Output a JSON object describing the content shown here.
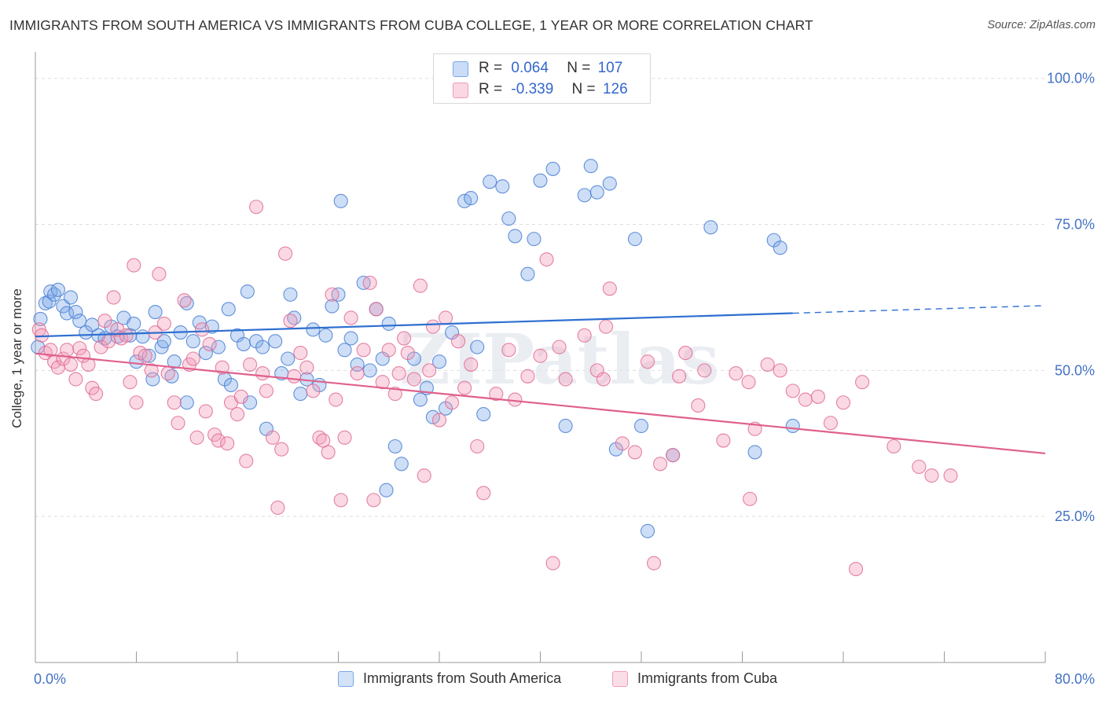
{
  "title": "IMMIGRANTS FROM SOUTH AMERICA VS IMMIGRANTS FROM CUBA COLLEGE, 1 YEAR OR MORE CORRELATION CHART",
  "source": "Source: ZipAtlas.com",
  "watermark": "ZIPatlas",
  "legend": {
    "rows": [
      {
        "r_label": "R =",
        "r_value": "0.064",
        "n_label": "N =",
        "n_value": "107",
        "color": "#7ba7e8"
      },
      {
        "r_label": "R =",
        "r_value": "-0.339",
        "n_label": "N =",
        "n_value": "126",
        "color": "#f19cb8"
      }
    ]
  },
  "chart_data": {
    "type": "scatter",
    "title": "IMMIGRANTS FROM SOUTH AMERICA VS IMMIGRANTS FROM CUBA COLLEGE, 1 YEAR OR MORE CORRELATION CHART",
    "xlabel": "",
    "ylabel": "College, 1 year or more",
    "xlim": [
      0,
      80
    ],
    "ylim": [
      0,
      104
    ],
    "x_tick_labels": [
      "0.0%",
      "80.0%"
    ],
    "y_tick_labels": [
      "100.0%",
      "75.0%",
      "50.0%",
      "25.0%"
    ],
    "y_ticks": [
      100,
      75,
      50,
      25
    ],
    "grid": true,
    "legend_position": "top-center",
    "series": [
      {
        "name": "Immigrants from South America",
        "color": "#7ba7e8",
        "stroke": "#4a7fd4",
        "trend": {
          "x0": 0,
          "y0": 55.8,
          "x1": 60,
          "y1": 59.8,
          "dashed_to_x": 80,
          "dashed_to_y": 61.1,
          "color": "#2e6fd0"
        },
        "points": [
          [
            0.2,
            54
          ],
          [
            0.4,
            58.8
          ],
          [
            0.8,
            61.5
          ],
          [
            1.1,
            61.8
          ],
          [
            1.2,
            63.5
          ],
          [
            1.5,
            63
          ],
          [
            1.8,
            63.8
          ],
          [
            2.2,
            61
          ],
          [
            2.5,
            59.8
          ],
          [
            2.8,
            62.5
          ],
          [
            3.2,
            60
          ],
          [
            3.5,
            58.5
          ],
          [
            4,
            56.5
          ],
          [
            4.5,
            57.8
          ],
          [
            5,
            56
          ],
          [
            5.5,
            55.5
          ],
          [
            6,
            57.5
          ],
          [
            6.5,
            55.8
          ],
          [
            7,
            59
          ],
          [
            7.5,
            56
          ],
          [
            7.8,
            58
          ],
          [
            8.5,
            55.8
          ],
          [
            8,
            51.5
          ],
          [
            9,
            52.5
          ],
          [
            9.5,
            60
          ],
          [
            9.3,
            48.5
          ],
          [
            10,
            54
          ],
          [
            10.2,
            55
          ],
          [
            11,
            51.5
          ],
          [
            11.5,
            56.5
          ],
          [
            12,
            61.5
          ],
          [
            12.5,
            55
          ],
          [
            13,
            58.2
          ],
          [
            13.5,
            53
          ],
          [
            14,
            57.5
          ],
          [
            14.5,
            54
          ],
          [
            15,
            48.5
          ],
          [
            12,
            44.5
          ],
          [
            15.3,
            60.5
          ],
          [
            15.5,
            47.5
          ],
          [
            16,
            56
          ],
          [
            16.5,
            54.5
          ],
          [
            17,
            44.5
          ],
          [
            17.5,
            55
          ],
          [
            18,
            54
          ],
          [
            18.3,
            40
          ],
          [
            19,
            55
          ],
          [
            19.5,
            49.5
          ],
          [
            20,
            52
          ],
          [
            20.5,
            59
          ],
          [
            21,
            46
          ],
          [
            21.5,
            48.5
          ],
          [
            22,
            57
          ],
          [
            22.5,
            47.5
          ],
          [
            23,
            56
          ],
          [
            23.5,
            61
          ],
          [
            24,
            63
          ],
          [
            24.5,
            53.5
          ],
          [
            25,
            55.5
          ],
          [
            25.5,
            51
          ],
          [
            26,
            65
          ],
          [
            26.5,
            50
          ],
          [
            27,
            60.5
          ],
          [
            27.5,
            52
          ],
          [
            28,
            58
          ],
          [
            28.5,
            37
          ],
          [
            29,
            34
          ],
          [
            30,
            52
          ],
          [
            30.5,
            45
          ],
          [
            31,
            47
          ],
          [
            31.5,
            42
          ],
          [
            32,
            51.5
          ],
          [
            32.5,
            43.5
          ],
          [
            33,
            56.5
          ],
          [
            34,
            79
          ],
          [
            34.5,
            79.5
          ],
          [
            35,
            54
          ],
          [
            36,
            82.3
          ],
          [
            37,
            81.5
          ],
          [
            37.5,
            76
          ],
          [
            38,
            73
          ],
          [
            39,
            66.5
          ],
          [
            39.5,
            72.5
          ],
          [
            40,
            82.5
          ],
          [
            41,
            84.5
          ],
          [
            42,
            40.5
          ],
          [
            43.5,
            80
          ],
          [
            44,
            85
          ],
          [
            44.5,
            80.5
          ],
          [
            45.5,
            82
          ],
          [
            46,
            36.5
          ],
          [
            47.5,
            72.5
          ],
          [
            48,
            40.5
          ],
          [
            48.5,
            22.5
          ],
          [
            50.5,
            35.5
          ],
          [
            53.5,
            74.5
          ],
          [
            57,
            36
          ],
          [
            58.5,
            72.3
          ],
          [
            59,
            71
          ],
          [
            60,
            40.5
          ],
          [
            27.8,
            29.5
          ],
          [
            24.2,
            79
          ],
          [
            20.2,
            63
          ],
          [
            35.5,
            42.5
          ],
          [
            16.8,
            63.5
          ],
          [
            10.8,
            49
          ]
        ]
      },
      {
        "name": "Immigrants from Cuba",
        "color": "#f19cb8",
        "stroke": "#e06c94",
        "trend": {
          "x0": 0,
          "y0": 52.9,
          "x1": 80,
          "y1": 35.8,
          "color": "#e0608c"
        },
        "points": [
          [
            0.3,
            57
          ],
          [
            0.5,
            56
          ],
          [
            0.8,
            53
          ],
          [
            1.2,
            53.5
          ],
          [
            1.5,
            51.5
          ],
          [
            1.8,
            50.5
          ],
          [
            2.2,
            52
          ],
          [
            2.5,
            53.5
          ],
          [
            2.8,
            51
          ],
          [
            3.2,
            48.5
          ],
          [
            3.5,
            53.8
          ],
          [
            3.8,
            52.5
          ],
          [
            4.2,
            51
          ],
          [
            4.5,
            47
          ],
          [
            4.8,
            46
          ],
          [
            5.2,
            54
          ],
          [
            5.5,
            58.5
          ],
          [
            5.8,
            55
          ],
          [
            6.2,
            62.5
          ],
          [
            6.5,
            57
          ],
          [
            6.8,
            55.5
          ],
          [
            7.2,
            56
          ],
          [
            7.5,
            48
          ],
          [
            7.8,
            68
          ],
          [
            8,
            44.5
          ],
          [
            8.3,
            53
          ],
          [
            8.7,
            52.5
          ],
          [
            9.2,
            50
          ],
          [
            9.5,
            56.5
          ],
          [
            9.8,
            66.5
          ],
          [
            10.2,
            58
          ],
          [
            10.5,
            49.5
          ],
          [
            11,
            44.5
          ],
          [
            11.3,
            41
          ],
          [
            11.8,
            62
          ],
          [
            12.2,
            51
          ],
          [
            12.5,
            52
          ],
          [
            12.8,
            38.5
          ],
          [
            13.2,
            57
          ],
          [
            13.5,
            43
          ],
          [
            13.8,
            54.5
          ],
          [
            14.2,
            39
          ],
          [
            14.5,
            38
          ],
          [
            14.8,
            50.5
          ],
          [
            15.2,
            37.5
          ],
          [
            15.5,
            44.5
          ],
          [
            16,
            42.5
          ],
          [
            16.3,
            45.5
          ],
          [
            16.7,
            34.5
          ],
          [
            17,
            51
          ],
          [
            17.5,
            78
          ],
          [
            18,
            49.5
          ],
          [
            18.3,
            46.5
          ],
          [
            18.8,
            38.5
          ],
          [
            19.2,
            26.5
          ],
          [
            19.5,
            36.5
          ],
          [
            19.8,
            70
          ],
          [
            20.2,
            58.5
          ],
          [
            20.5,
            49
          ],
          [
            21,
            53
          ],
          [
            21.5,
            50.5
          ],
          [
            22,
            46.5
          ],
          [
            22.5,
            38.5
          ],
          [
            22.8,
            38
          ],
          [
            23.2,
            36
          ],
          [
            23.5,
            63
          ],
          [
            23.8,
            45
          ],
          [
            24.2,
            27.8
          ],
          [
            24.5,
            38.5
          ],
          [
            25,
            59
          ],
          [
            25.5,
            49.5
          ],
          [
            26,
            53.5
          ],
          [
            26.5,
            65
          ],
          [
            27,
            60.5
          ],
          [
            27.5,
            48
          ],
          [
            28,
            53.5
          ],
          [
            28.5,
            46
          ],
          [
            28.8,
            49.5
          ],
          [
            29.2,
            55.5
          ],
          [
            29.5,
            53
          ],
          [
            30,
            48.5
          ],
          [
            30.5,
            64.5
          ],
          [
            30.8,
            32
          ],
          [
            31.2,
            50
          ],
          [
            31.5,
            57.5
          ],
          [
            32,
            41.5
          ],
          [
            32.5,
            59
          ],
          [
            33,
            44.5
          ],
          [
            33.5,
            55
          ],
          [
            34,
            47
          ],
          [
            34.5,
            51
          ],
          [
            35,
            37
          ],
          [
            35.5,
            29
          ],
          [
            36.5,
            46
          ],
          [
            37.5,
            53.5
          ],
          [
            38,
            45
          ],
          [
            39,
            49
          ],
          [
            40,
            52.5
          ],
          [
            40.5,
            69
          ],
          [
            41,
            17
          ],
          [
            41.5,
            54
          ],
          [
            42,
            48.5
          ],
          [
            43.5,
            56
          ],
          [
            44.5,
            50
          ],
          [
            45,
            48.5
          ],
          [
            45.5,
            64
          ],
          [
            46.5,
            37.5
          ],
          [
            47.5,
            36
          ],
          [
            48.5,
            51.5
          ],
          [
            49,
            17
          ],
          [
            49.5,
            34
          ],
          [
            50.5,
            35.5
          ],
          [
            51,
            49
          ],
          [
            51.5,
            53
          ],
          [
            52.5,
            44
          ],
          [
            53,
            50
          ],
          [
            54.5,
            38
          ],
          [
            55.5,
            49.5
          ],
          [
            56.5,
            48
          ],
          [
            57,
            40
          ],
          [
            58,
            51
          ],
          [
            59,
            50
          ],
          [
            60,
            46.5
          ],
          [
            61,
            45
          ],
          [
            62,
            45.5
          ],
          [
            63,
            41
          ],
          [
            64,
            44.5
          ],
          [
            65,
            16
          ],
          [
            65.5,
            48
          ],
          [
            68,
            37
          ],
          [
            70,
            33.5
          ],
          [
            71,
            32
          ],
          [
            72.5,
            32
          ],
          [
            56.6,
            28
          ],
          [
            26.8,
            27.8
          ],
          [
            45.2,
            57.5
          ]
        ]
      }
    ]
  },
  "bottom_legend": [
    {
      "label": "Immigrants from South America",
      "color": "#7ba7e8"
    },
    {
      "label": "Immigrants from Cuba",
      "color": "#f19cb8"
    }
  ]
}
